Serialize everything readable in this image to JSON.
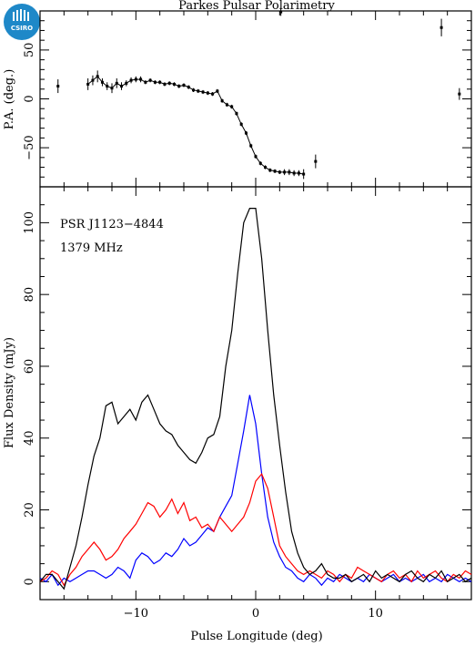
{
  "logo": {
    "text": "CSIRO",
    "color": "#1e88c8"
  },
  "chart_data": {
    "type": "line",
    "title": "Parkes Pulsar Polarimetry",
    "annotations": [
      "PSR J1123−4844",
      "1379 MHz"
    ],
    "xlabel": "Pulse Longitude (deg)",
    "xlim": [
      -18,
      18
    ],
    "x_ticks": [
      -10,
      0,
      10
    ],
    "x_tick_labels": [
      "−10",
      "0",
      "10"
    ],
    "pa_panel": {
      "ylabel": "P.A. (deg.)",
      "ylim": [
        -90,
        90
      ],
      "y_ticks": [
        -50,
        0,
        50
      ],
      "y_tick_labels": [
        "−50",
        "0",
        "50"
      ],
      "points": [
        {
          "x": -16.5,
          "y": 13,
          "err": 7
        },
        {
          "x": -14.0,
          "y": 15,
          "err": 6
        },
        {
          "x": -13.6,
          "y": 19,
          "err": 5
        },
        {
          "x": -13.2,
          "y": 23,
          "err": 6
        },
        {
          "x": -12.8,
          "y": 17,
          "err": 4
        },
        {
          "x": -12.4,
          "y": 13,
          "err": 4
        },
        {
          "x": -12.0,
          "y": 11,
          "err": 5
        },
        {
          "x": -11.6,
          "y": 16,
          "err": 5
        },
        {
          "x": -11.2,
          "y": 13,
          "err": 4
        },
        {
          "x": -10.8,
          "y": 16,
          "err": 3
        },
        {
          "x": -10.4,
          "y": 19,
          "err": 3
        },
        {
          "x": -10.0,
          "y": 20,
          "err": 3
        },
        {
          "x": -9.6,
          "y": 20,
          "err": 3
        },
        {
          "x": -9.2,
          "y": 17,
          "err": 2
        },
        {
          "x": -8.8,
          "y": 19,
          "err": 2
        },
        {
          "x": -8.4,
          "y": 17,
          "err": 2
        },
        {
          "x": -8.0,
          "y": 17,
          "err": 2
        },
        {
          "x": -7.6,
          "y": 15,
          "err": 2
        },
        {
          "x": -7.2,
          "y": 16,
          "err": 2
        },
        {
          "x": -6.8,
          "y": 15,
          "err": 2
        },
        {
          "x": -6.4,
          "y": 13,
          "err": 2
        },
        {
          "x": -6.0,
          "y": 14,
          "err": 2
        },
        {
          "x": -5.6,
          "y": 12,
          "err": 2
        },
        {
          "x": -5.2,
          "y": 9,
          "err": 2
        },
        {
          "x": -4.8,
          "y": 8,
          "err": 2
        },
        {
          "x": -4.4,
          "y": 7,
          "err": 2
        },
        {
          "x": -4.0,
          "y": 6,
          "err": 2
        },
        {
          "x": -3.6,
          "y": 5,
          "err": 2
        },
        {
          "x": -3.2,
          "y": 8,
          "err": 2
        },
        {
          "x": -2.8,
          "y": -2,
          "err": 2
        },
        {
          "x": -2.4,
          "y": -6,
          "err": 2
        },
        {
          "x": -2.0,
          "y": -8,
          "err": 2
        },
        {
          "x": -1.6,
          "y": -15,
          "err": 2
        },
        {
          "x": -1.2,
          "y": -26,
          "err": 2
        },
        {
          "x": -0.8,
          "y": -35,
          "err": 2
        },
        {
          "x": -0.4,
          "y": -48,
          "err": 2
        },
        {
          "x": 0.0,
          "y": -59,
          "err": 2
        },
        {
          "x": 0.4,
          "y": -66,
          "err": 2
        },
        {
          "x": 0.8,
          "y": -70,
          "err": 2
        },
        {
          "x": 1.2,
          "y": -73,
          "err": 2
        },
        {
          "x": 1.6,
          "y": -74,
          "err": 2
        },
        {
          "x": 2.0,
          "y": -75,
          "err": 2
        },
        {
          "x": 2.4,
          "y": -75,
          "err": 3
        },
        {
          "x": 2.8,
          "y": -75,
          "err": 3
        },
        {
          "x": 3.2,
          "y": -76,
          "err": 3
        },
        {
          "x": 3.6,
          "y": -76,
          "err": 3
        },
        {
          "x": 4.0,
          "y": -77,
          "err": 5
        },
        {
          "x": 5.0,
          "y": -64,
          "err": 7
        },
        {
          "x": 2.1,
          "y": 89,
          "err": 4
        },
        {
          "x": 15.5,
          "y": 73,
          "err": 9
        },
        {
          "x": 17.0,
          "y": 5,
          "err": 6
        }
      ]
    },
    "profile_panel": {
      "ylabel": "Flux Density (mJy)",
      "ylim": [
        -5,
        110
      ],
      "y_ticks": [
        0,
        20,
        40,
        60,
        80,
        100
      ],
      "y_tick_labels": [
        "0",
        "20",
        "40",
        "60",
        "80",
        "100"
      ],
      "x": [
        -18.0,
        -17.5,
        -17.0,
        -16.5,
        -16.0,
        -15.5,
        -15.0,
        -14.5,
        -14.0,
        -13.5,
        -13.0,
        -12.5,
        -12.0,
        -11.5,
        -11.0,
        -10.5,
        -10.0,
        -9.5,
        -9.0,
        -8.5,
        -8.0,
        -7.5,
        -7.0,
        -6.5,
        -6.0,
        -5.5,
        -5.0,
        -4.5,
        -4.0,
        -3.5,
        -3.0,
        -2.5,
        -2.0,
        -1.5,
        -1.0,
        -0.5,
        0.0,
        0.5,
        1.0,
        1.5,
        2.0,
        2.5,
        3.0,
        3.5,
        4.0,
        4.5,
        5.0,
        5.5,
        6.0,
        6.5,
        7.0,
        7.5,
        8.0,
        8.5,
        9.0,
        9.5,
        10.0,
        10.5,
        11.0,
        11.5,
        12.0,
        12.5,
        13.0,
        13.5,
        14.0,
        14.5,
        15.0,
        15.5,
        16.0,
        16.5,
        17.0,
        17.5,
        18.0
      ],
      "series": [
        {
          "color": "#000000",
          "values": [
            0,
            2,
            2,
            0,
            -2,
            4,
            10,
            18,
            27,
            35,
            40,
            49,
            50,
            44,
            46,
            48,
            45,
            50,
            52,
            48,
            44,
            42,
            41,
            38,
            36,
            34,
            33,
            36,
            40,
            41,
            46,
            60,
            70,
            86,
            100,
            104,
            104,
            90,
            70,
            52,
            38,
            25,
            14,
            8,
            4,
            2,
            3,
            5,
            2,
            1,
            1,
            2,
            0,
            1,
            2,
            0,
            3,
            1,
            2,
            1,
            0,
            2,
            3,
            1,
            0,
            2,
            1,
            3,
            0,
            1,
            2,
            0,
            1
          ]
        },
        {
          "color": "#ff0000",
          "values": [
            0,
            1,
            3,
            2,
            -1,
            2,
            4,
            7,
            9,
            11,
            9,
            6,
            7,
            9,
            12,
            14,
            16,
            19,
            22,
            21,
            18,
            20,
            23,
            19,
            22,
            17,
            18,
            15,
            16,
            14,
            18,
            16,
            14,
            16,
            18,
            22,
            28,
            30,
            26,
            18,
            10,
            7,
            5,
            3,
            2,
            3,
            2,
            1,
            3,
            2,
            0,
            2,
            1,
            4,
            3,
            2,
            1,
            0,
            2,
            3,
            1,
            2,
            0,
            3,
            1,
            2,
            3,
            1,
            0,
            2,
            1,
            3,
            2
          ]
        },
        {
          "color": "#0000ff",
          "values": [
            1,
            0,
            2,
            -1,
            1,
            0,
            1,
            2,
            3,
            3,
            2,
            1,
            2,
            4,
            3,
            1,
            6,
            8,
            7,
            5,
            6,
            8,
            7,
            9,
            12,
            10,
            11,
            13,
            15,
            14,
            18,
            21,
            24,
            33,
            42,
            52,
            44,
            30,
            18,
            11,
            7,
            4,
            3,
            1,
            0,
            2,
            1,
            -1,
            1,
            0,
            2,
            1,
            0,
            1,
            0,
            2,
            1,
            0,
            1,
            2,
            0,
            1,
            0,
            1,
            2,
            0,
            1,
            0,
            2,
            1,
            0,
            1,
            0
          ]
        }
      ]
    }
  }
}
